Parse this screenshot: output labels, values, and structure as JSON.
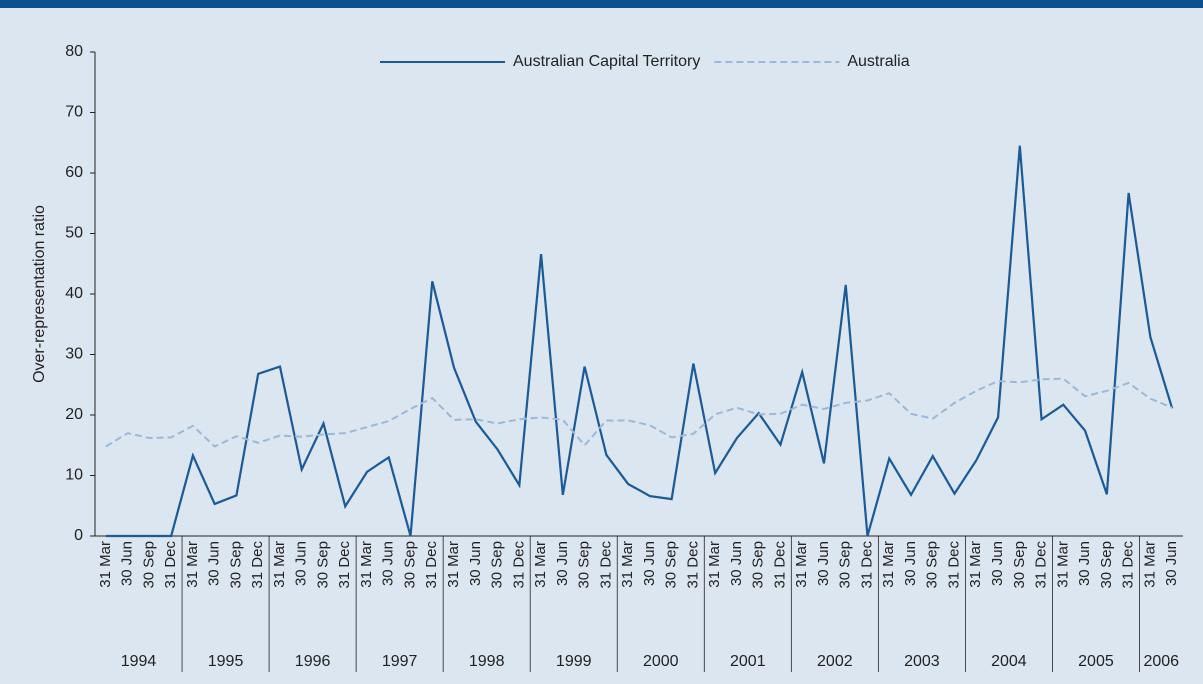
{
  "chart_data": {
    "type": "line",
    "y_label": "Over-representation ratio",
    "categories": [
      "31 Mar",
      "30 Jun",
      "30 Sep",
      "31 Dec",
      "31 Mar",
      "30 Jun",
      "30 Sep",
      "31 Dec",
      "31 Mar",
      "30 Jun",
      "30 Sep",
      "31 Dec",
      "31 Mar",
      "30 Jun",
      "30 Sep",
      "31 Dec",
      "31 Mar",
      "30 Jun",
      "30 Sep",
      "31 Dec",
      "31 Mar",
      "30 Jun",
      "30 Sep",
      "31 Dec",
      "31 Mar",
      "30 Jun",
      "30 Sep",
      "31 Dec",
      "31 Mar",
      "30 Jun",
      "30 Sep",
      "31 Dec",
      "31 Mar",
      "30 Jun",
      "30 Sep",
      "31 Dec",
      "31 Mar",
      "30 Jun",
      "30 Sep",
      "31 Dec",
      "31 Mar",
      "30 Jun",
      "30 Sep",
      "31 Dec",
      "31 Mar",
      "30 Jun",
      "30 Sep",
      "31 Dec",
      "31 Mar",
      "30 Jun"
    ],
    "x_groups": [
      "1994",
      "1995",
      "1996",
      "1997",
      "1998",
      "1999",
      "2000",
      "2001",
      "2002",
      "2003",
      "2004",
      "2005",
      "2006"
    ],
    "series": [
      {
        "name": "Australian Capital Territory",
        "color": "#1a5a96",
        "dashed": false,
        "values": [
          0,
          0,
          0,
          0,
          13.3,
          5.3,
          6.7,
          26.8,
          28,
          11,
          18.6,
          4.9,
          10.6,
          13,
          0,
          42.1,
          27.8,
          18.9,
          14.3,
          8.4,
          46.6,
          6.8,
          28,
          13.4,
          8.6,
          6.6,
          6.1,
          28.5,
          10.4,
          16.2,
          20.3,
          15.1,
          27.1,
          12,
          41.5,
          0,
          12.8,
          6.8,
          13.2,
          7,
          12.5,
          19.6,
          64.5,
          19.3,
          21.7,
          17.4,
          6.9,
          56.7,
          32.9,
          21.1
        ]
      },
      {
        "name": "Australia",
        "color": "#9bb8d8",
        "dashed": true,
        "values": [
          14.8,
          17,
          16.2,
          16.3,
          18.2,
          14.8,
          16.5,
          15.4,
          16.6,
          16.4,
          16.8,
          17,
          18,
          19,
          21,
          22.8,
          19.2,
          19.3,
          18.6,
          19.3,
          19.6,
          19.2,
          15,
          19.1,
          19.1,
          18.3,
          16.3,
          16.9,
          20.1,
          21.2,
          20.1,
          20.2,
          21.7,
          21,
          22,
          22.4,
          23.6,
          20.2,
          19.4,
          22,
          24,
          25.6,
          25.4,
          25.9,
          26,
          23.1,
          24,
          25.3,
          22.7,
          21.2
        ]
      }
    ],
    "ylim": [
      0,
      80
    ],
    "yticks": [
      0,
      10,
      20,
      30,
      40,
      50,
      60,
      70,
      80
    ],
    "legend": "top"
  }
}
